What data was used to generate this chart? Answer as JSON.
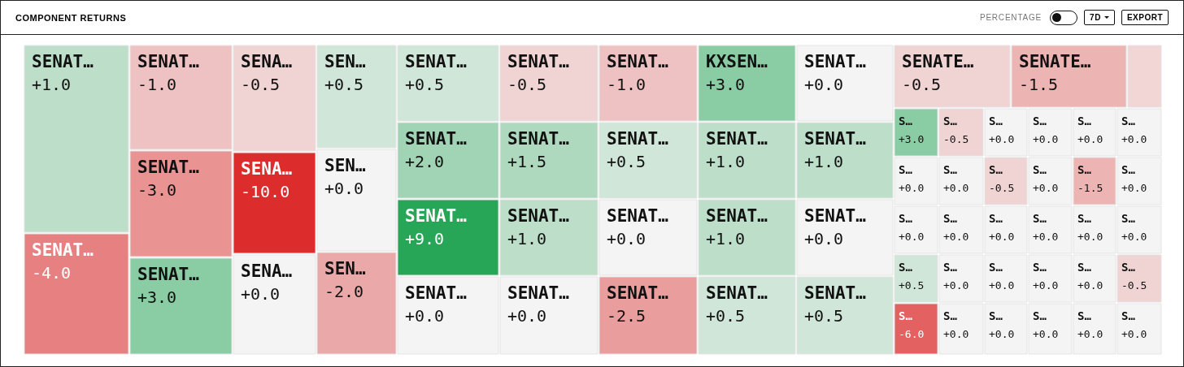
{
  "chart_data": {
    "type": "other",
    "title": "COMPONENT RETURNS",
    "annotations": [
      "PERCENTAGE",
      "7D",
      "EXPORT"
    ],
    "value_labels": [
      "+1.0",
      "-4.0",
      "-1.0",
      "-3.0",
      "+3.0",
      "-0.5",
      "-10.0",
      "+0.0",
      "+0.5",
      "+0.0",
      "-2.0",
      "+0.5",
      "-0.5",
      "-1.0",
      "+3.0",
      "+0.0",
      "+2.0",
      "+1.5",
      "+0.5",
      "+1.0",
      "+1.0",
      "+9.0",
      "+1.0",
      "+0.0",
      "+1.0",
      "+0.0",
      "+0.0",
      "+0.0",
      "-2.5",
      "+0.5",
      "+0.5",
      "-0.5",
      "-1.5",
      null,
      "+3.0",
      "-0.5",
      "+0.0",
      "+0.0",
      "+0.0",
      "+0.0",
      "+0.0",
      "+0.0",
      "-0.5",
      "+0.0",
      "-1.5",
      "+0.0",
      "+0.0",
      "+0.0",
      "+0.0",
      "+0.0",
      "+0.0",
      "+0.0",
      "+0.5",
      "+0.0",
      "+0.0",
      "+0.0",
      "+0.0",
      "-0.5",
      "-6.0",
      "+0.0",
      "+0.0",
      "+0.0",
      "+0.0",
      "+0.0"
    ],
    "categories": [
      "SENAT…",
      "SENAT…",
      "SENAT…",
      "SENAT…",
      "SENAT…",
      "SENA…",
      "SENA…",
      "SENA…",
      "SEN…",
      "SEN…",
      "SEN…",
      "SENAT…",
      "SENAT…",
      "SENAT…",
      "KXSEN…",
      "SENAT…",
      "SENAT…",
      "SENAT…",
      "SENAT…",
      "SENAT…",
      "SENAT…",
      "SENAT…",
      "SENAT…",
      "SENAT…",
      "SENAT…",
      "SENAT…",
      "SENAT…",
      "SENAT…",
      "SENAT…",
      "SENAT…",
      "SENAT…",
      "SENATE…",
      "SENATE…",
      null,
      "S…",
      "S…",
      "S…",
      "S…",
      "S…",
      "S…",
      "S…",
      "S…",
      "S…",
      "S…",
      "S…",
      "S…",
      "S…",
      "S…",
      "S…",
      "S…",
      "S…",
      "S…",
      "S…",
      "S…",
      "S…",
      "S…",
      "S…",
      "S…",
      "S…",
      "S…",
      "S…",
      "S…",
      "S…",
      "S…"
    ],
    "values": [
      1.0,
      -4.0,
      -1.0,
      -3.0,
      3.0,
      -0.5,
      -10.0,
      0.0,
      0.5,
      0.0,
      -2.0,
      0.5,
      -0.5,
      -1.0,
      3.0,
      0.0,
      2.0,
      1.5,
      0.5,
      1.0,
      1.0,
      9.0,
      1.0,
      0.0,
      1.0,
      0.0,
      0.0,
      0.0,
      -2.5,
      0.5,
      0.5,
      -0.5,
      -1.5,
      null,
      3.0,
      -0.5,
      0.0,
      0.0,
      0.0,
      0.0,
      0.0,
      0.0,
      -0.5,
      0.0,
      -1.5,
      0.0,
      0.0,
      0.0,
      0.0,
      0.0,
      0.0,
      0.0,
      0.5,
      0.0,
      0.0,
      0.0,
      0.0,
      -0.5,
      -6.0,
      0.0,
      0.0,
      0.0,
      0.0,
      0.0
    ],
    "colors": [
      null,
      null,
      null,
      null,
      null,
      null,
      null,
      null,
      null,
      null,
      null,
      null,
      null,
      null,
      null,
      null,
      null,
      null,
      null,
      null,
      null,
      null,
      null,
      null,
      null,
      null,
      null,
      null,
      null,
      null,
      null,
      null,
      null,
      "#f2d6d6",
      null,
      null,
      null,
      null,
      null,
      null,
      null,
      null,
      null,
      null,
      null,
      null,
      null,
      null,
      null,
      null,
      null,
      null,
      null,
      null,
      null,
      null,
      null,
      null,
      null,
      null,
      null,
      null,
      null,
      null
    ]
  }
}
